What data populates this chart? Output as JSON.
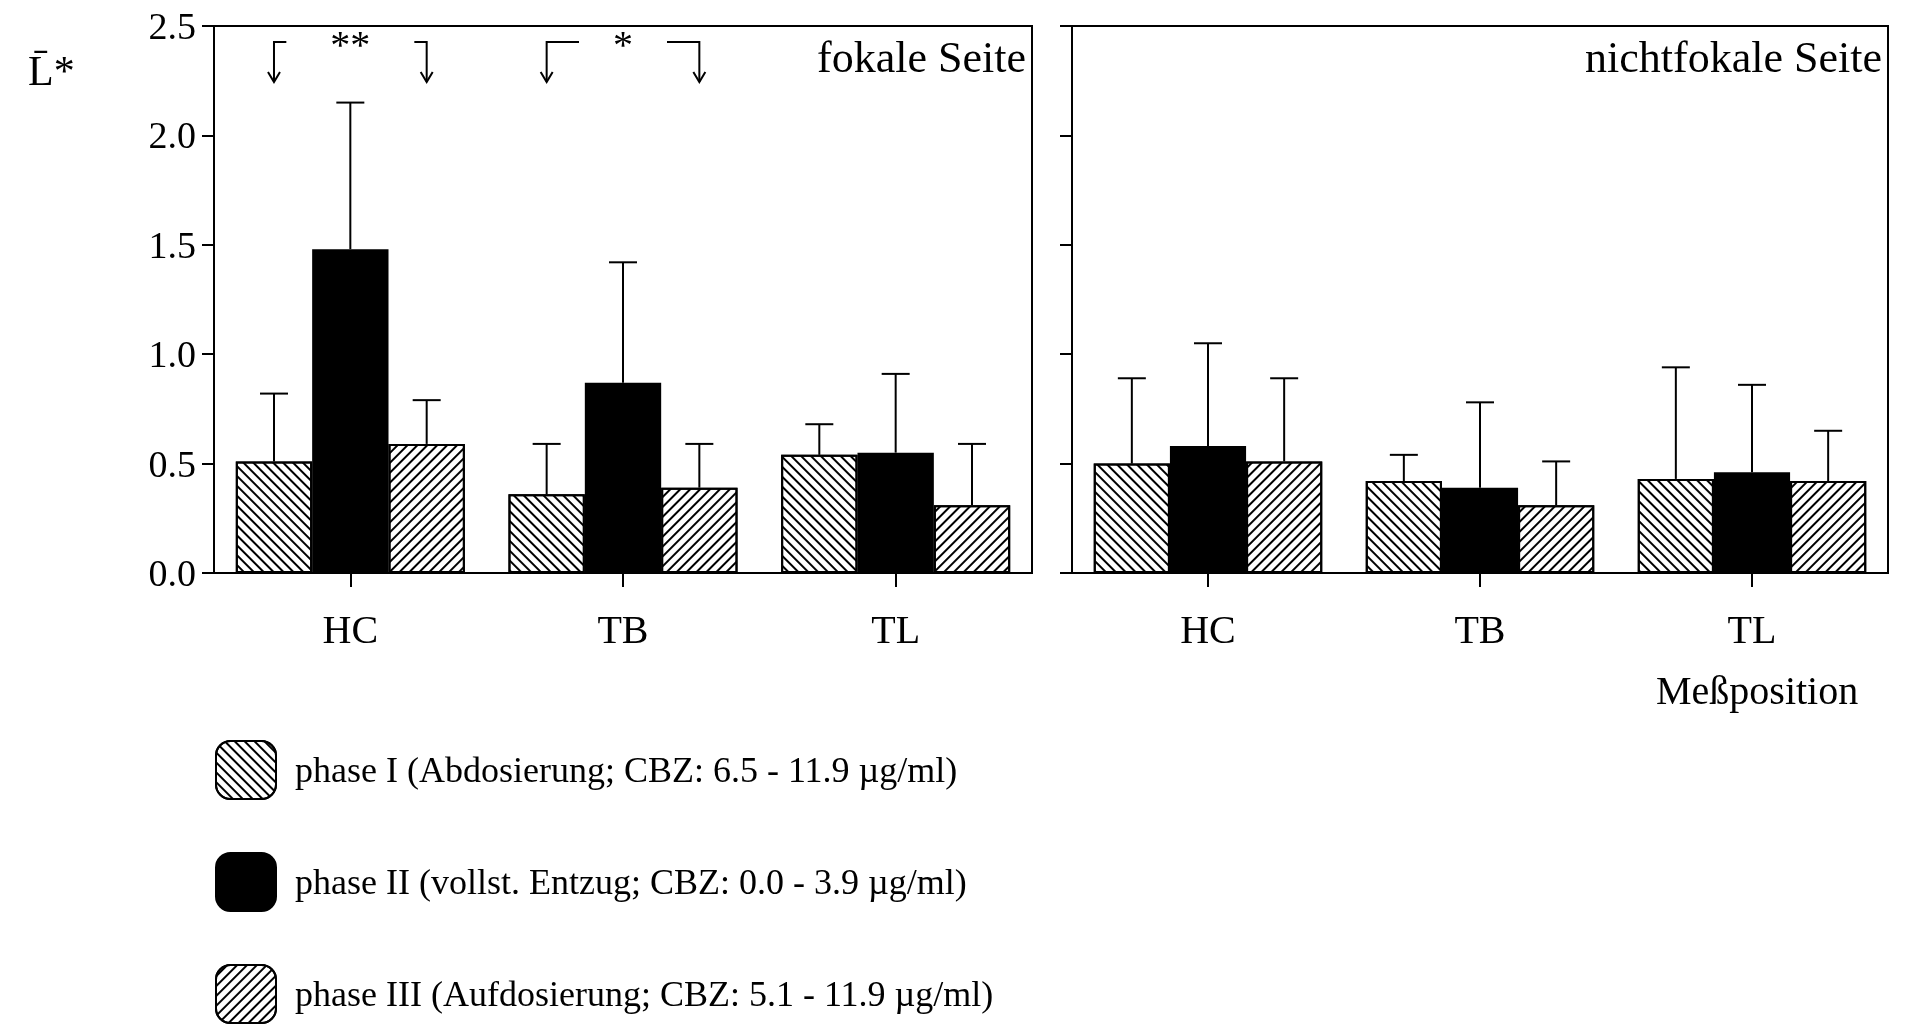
{
  "chart_data": [
    {
      "type": "bar",
      "title": "fokale Seite",
      "ylabel": "L̄*",
      "categories": [
        "HC",
        "TB",
        "TL"
      ],
      "series": [
        {
          "name": "phase I (Abdosierung; CBZ: 6.5 - 11.9 µg/ml)",
          "color": "#000000",
          "values": [
            0.51,
            0.36,
            0.54
          ],
          "errors": [
            [
              0.51,
              0.82
            ],
            [
              0.36,
              0.59
            ],
            [
              0.54,
              0.68
            ]
          ]
        },
        {
          "name": "phase II (vollst. Entzug; CBZ: 0.0 - 3.9 µg/ml)",
          "color": "#000000",
          "values": [
            1.48,
            0.87,
            0.55
          ],
          "errors": [
            [
              1.48,
              2.15
            ],
            [
              0.87,
              1.42
            ],
            [
              0.55,
              0.91
            ]
          ]
        },
        {
          "name": "phase III (Aufdosierung; CBZ: 5.1 - 11.9 µg/ml)",
          "color": "#000000",
          "values": [
            0.59,
            0.39,
            0.31
          ],
          "errors": [
            [
              0.59,
              0.79
            ],
            [
              0.39,
              0.59
            ],
            [
              0.31,
              0.59
            ]
          ]
        }
      ],
      "ylim": [
        0,
        2.5
      ],
      "yticks": [
        {
          "value": 0,
          "label": "0.0"
        },
        0.5,
        {
          "value": 1,
          "label": "1.0"
        },
        1.5,
        {
          "value": 2,
          "label": "2.0"
        },
        2.5
      ],
      "legend": "bottom",
      "annotations": [
        "**",
        "*"
      ]
    },
    {
      "type": "bar",
      "title": "nichtfokale Seite",
      "xlabel": "Meßposition",
      "categories": [
        "HC",
        "TB",
        "TL"
      ],
      "series": [
        {
          "color": "#000000",
          "values": [
            0.5,
            0.42,
            0.43
          ],
          "errors": [
            [
              0.5,
              0.89
            ],
            [
              0.42,
              0.54
            ],
            [
              0.43,
              0.94
            ]
          ]
        },
        {
          "color": "#000000",
          "values": [
            0.58,
            0.39,
            0.46
          ],
          "errors": [
            [
              0.58,
              1.05
            ],
            [
              0.39,
              0.78
            ],
            [
              0.46,
              0.86
            ]
          ]
        },
        {
          "color": "#000000",
          "values": [
            0.51,
            0.31,
            0.42
          ],
          "errors": [
            [
              0.51,
              0.89
            ],
            [
              0.31,
              0.51
            ],
            [
              0.42,
              0.65
            ]
          ]
        }
      ],
      "ylim": [
        0,
        2.5
      ],
      "yticks": [
        0,
        0.5,
        1,
        1.5,
        2,
        2.5
      ],
      "tick_labels": "x"
    }
  ]
}
